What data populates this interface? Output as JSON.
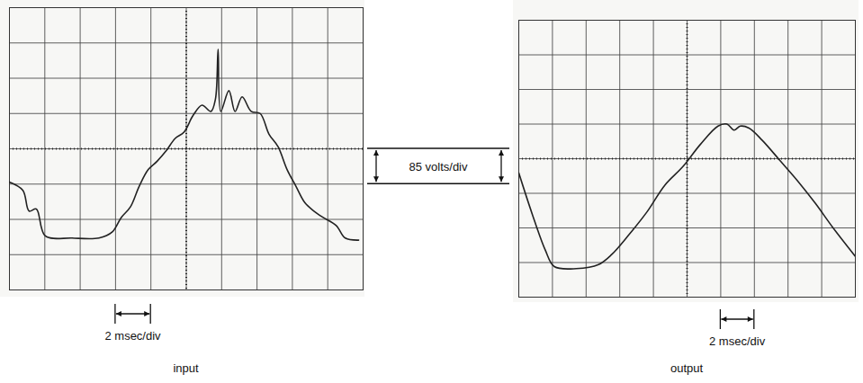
{
  "chart_data": [
    {
      "type": "line",
      "title": "input",
      "x_annotation": "2 msec/div",
      "y_annotation": "85 volts/div",
      "color": "#222222",
      "grid": true,
      "tick_labels": false,
      "line_style": "solid",
      "xlim": [
        0,
        20
      ],
      "xticks": [
        0,
        2,
        4,
        6,
        8,
        10,
        12,
        14,
        16,
        18,
        20
      ],
      "ylim": [
        -340,
        340
      ],
      "yticks": [
        -340,
        -255,
        -170,
        -85,
        0,
        85,
        170,
        255,
        340
      ],
      "x": [
        0,
        0.76,
        1.11,
        1.52,
        2.03,
        3.54,
        5.06,
        5.82,
        6.33,
        6.84,
        7.34,
        7.85,
        8.35,
        8.86,
        9.37,
        9.87,
        10.38,
        10.89,
        11.39,
        11.65,
        11.8,
        11.95,
        12.41,
        12.76,
        13.16,
        13.67,
        14.18,
        14.68,
        15.19,
        15.7,
        16.2,
        16.71,
        17.22,
        17.72,
        18.48,
        18.99,
        19.75
      ],
      "values": [
        -80,
        -100,
        -150,
        -145,
        -210,
        -215,
        -215,
        -200,
        -165,
        -140,
        -90,
        -50,
        -30,
        -5,
        25,
        40,
        80,
        105,
        90,
        120,
        240,
        90,
        140,
        90,
        125,
        90,
        85,
        35,
        5,
        -50,
        -90,
        -130,
        -150,
        -165,
        -185,
        -215,
        -220
      ]
    },
    {
      "type": "line",
      "title": "output",
      "x_annotation": "2 msec/div",
      "color": "#222222",
      "grid": true,
      "tick_labels": false,
      "line_style": "solid",
      "xlim": [
        0,
        20
      ],
      "xticks": [
        0,
        2,
        4,
        6,
        8,
        10,
        12,
        14,
        16,
        18,
        20
      ],
      "ylim": [
        -340,
        340
      ],
      "yticks": [
        -340,
        -255,
        -170,
        -85,
        0,
        85,
        170,
        255,
        340
      ],
      "x": [
        0,
        0.79,
        1.58,
        2.11,
        3.42,
        4.74,
        5.53,
        6.58,
        7.63,
        8.68,
        9.74,
        10.79,
        11.84,
        12.37,
        12.79,
        13.16,
        13.68,
        14.47,
        15.53,
        16.58,
        17.63,
        18.68,
        20
      ],
      "values": [
        -35,
        -135,
        -225,
        -265,
        -270,
        -260,
        -235,
        -185,
        -130,
        -65,
        -20,
        35,
        80,
        85,
        70,
        80,
        75,
        45,
        -5,
        -55,
        -110,
        -170,
        -240
      ]
    }
  ]
}
